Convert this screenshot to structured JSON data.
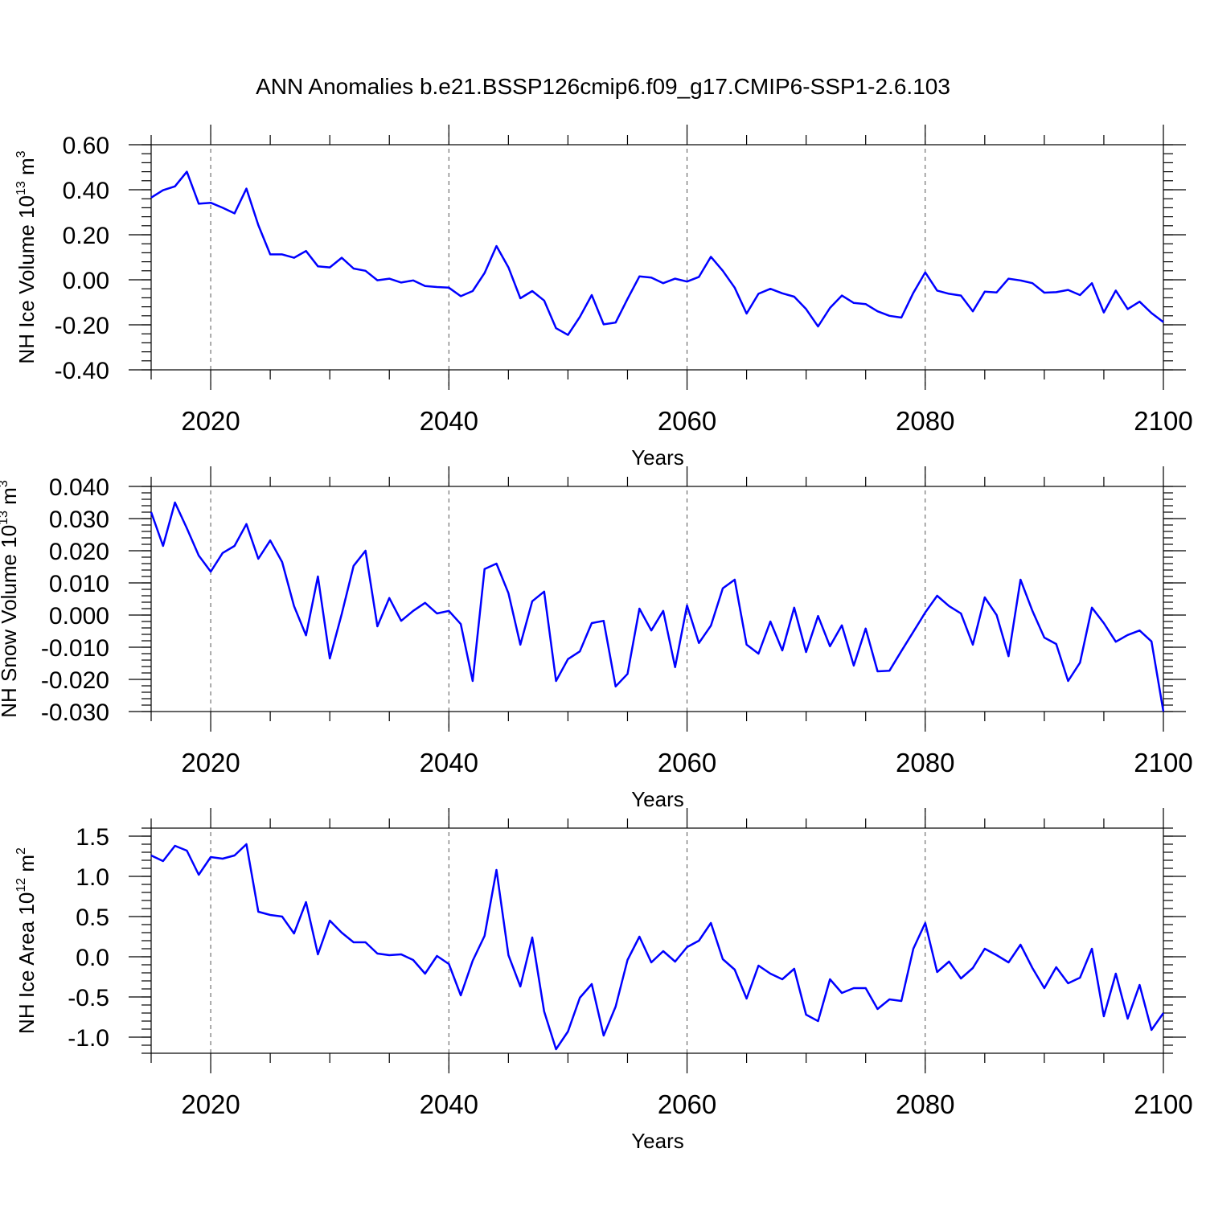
{
  "figure_title": "ANN Anomalies b.e21.BSSP126cmip6.f09_g17.CMIP6-SSP1-2.6.103",
  "line_color": "#0000ff",
  "chart_data": [
    {
      "type": "line",
      "title": "ANN Anomalies b.e21.BSSP126cmip6.f09_g17.CMIP6-SSP1-2.6.103",
      "xlabel": "Years",
      "ylabel_main": "NH Ice Volume 10",
      "ylabel_exp": "13",
      "ylabel_unit": " m",
      "ylabel_unit_exp": "3",
      "xlim": [
        2015,
        2100
      ],
      "ylim": [
        -0.4,
        0.6
      ],
      "x_ticks": [
        2020,
        2040,
        2060,
        2080,
        2100
      ],
      "x_tick_labels": [
        "2020",
        "2040",
        "2060",
        "2080",
        "2100"
      ],
      "y_ticks": [
        0.6,
        0.4,
        0.2,
        0.0,
        -0.2,
        -0.4
      ],
      "y_tick_labels": [
        "0.60",
        "0.40",
        "0.20",
        "0.00",
        "-0.20",
        "-0.40"
      ],
      "grid_x": [
        2020,
        2040,
        2060,
        2080
      ],
      "x": [
        2015,
        2016,
        2017,
        2018,
        2019,
        2020,
        2021,
        2022,
        2023,
        2024,
        2025,
        2026,
        2027,
        2028,
        2029,
        2030,
        2031,
        2032,
        2033,
        2034,
        2035,
        2036,
        2037,
        2038,
        2039,
        2040,
        2041,
        2042,
        2043,
        2044,
        2045,
        2046,
        2047,
        2048,
        2049,
        2050,
        2051,
        2052,
        2053,
        2054,
        2055,
        2056,
        2057,
        2058,
        2059,
        2060,
        2061,
        2062,
        2063,
        2064,
        2065,
        2066,
        2067,
        2068,
        2069,
        2070,
        2071,
        2072,
        2073,
        2074,
        2075,
        2076,
        2077,
        2078,
        2079,
        2080,
        2081,
        2082,
        2083,
        2084,
        2085,
        2086,
        2087,
        2088,
        2089,
        2090,
        2091,
        2092,
        2093,
        2094,
        2095,
        2096,
        2097,
        2098,
        2099,
        2100
      ],
      "values": [
        0.365,
        0.398,
        0.415,
        0.48,
        0.338,
        0.342,
        0.32,
        0.295,
        0.405,
        0.243,
        0.113,
        0.113,
        0.098,
        0.128,
        0.06,
        0.055,
        0.098,
        0.05,
        0.04,
        -0.002,
        0.005,
        -0.012,
        -0.003,
        -0.028,
        -0.032,
        -0.035,
        -0.073,
        -0.05,
        0.03,
        0.15,
        0.055,
        -0.082,
        -0.05,
        -0.092,
        -0.215,
        -0.245,
        -0.165,
        -0.068,
        -0.198,
        -0.19,
        -0.085,
        0.015,
        0.01,
        -0.015,
        0.005,
        -0.008,
        0.013,
        0.102,
        0.04,
        -0.035,
        -0.15,
        -0.062,
        -0.04,
        -0.06,
        -0.075,
        -0.13,
        -0.207,
        -0.125,
        -0.07,
        -0.103,
        -0.108,
        -0.14,
        -0.16,
        -0.168,
        -0.058,
        0.033,
        -0.048,
        -0.062,
        -0.07,
        -0.14,
        -0.053,
        -0.056,
        0.005,
        -0.003,
        -0.015,
        -0.057,
        -0.055,
        -0.045,
        -0.068,
        -0.015,
        -0.145,
        -0.048,
        -0.13,
        -0.097,
        -0.148,
        -0.188
      ]
    },
    {
      "type": "line",
      "xlabel": "Years",
      "ylabel_main": "NH Snow Volume 10",
      "ylabel_exp": "13",
      "ylabel_unit": " m",
      "ylabel_unit_exp": "3",
      "xlim": [
        2015,
        2100
      ],
      "ylim": [
        -0.03,
        0.04
      ],
      "x_ticks": [
        2020,
        2040,
        2060,
        2080,
        2100
      ],
      "x_tick_labels": [
        "2020",
        "2040",
        "2060",
        "2080",
        "2100"
      ],
      "y_ticks": [
        0.04,
        0.03,
        0.02,
        0.01,
        0.0,
        -0.01,
        -0.02,
        -0.03
      ],
      "y_tick_labels": [
        "0.040",
        "0.030",
        "0.020",
        "0.010",
        "0.000",
        "-0.010",
        "-0.020",
        "-0.030"
      ],
      "grid_x": [
        2020,
        2040,
        2060,
        2080
      ],
      "x": [
        2015,
        2016,
        2017,
        2018,
        2019,
        2020,
        2021,
        2022,
        2023,
        2024,
        2025,
        2026,
        2027,
        2028,
        2029,
        2030,
        2031,
        2032,
        2033,
        2034,
        2035,
        2036,
        2037,
        2038,
        2039,
        2040,
        2041,
        2042,
        2043,
        2044,
        2045,
        2046,
        2047,
        2048,
        2049,
        2050,
        2051,
        2052,
        2053,
        2054,
        2055,
        2056,
        2057,
        2058,
        2059,
        2060,
        2061,
        2062,
        2063,
        2064,
        2065,
        2066,
        2067,
        2068,
        2069,
        2070,
        2071,
        2072,
        2073,
        2074,
        2075,
        2076,
        2077,
        2078,
        2079,
        2080,
        2081,
        2082,
        2083,
        2084,
        2085,
        2086,
        2087,
        2088,
        2089,
        2090,
        2091,
        2092,
        2093,
        2094,
        2095,
        2096,
        2097,
        2098,
        2099,
        2100
      ],
      "values": [
        0.032,
        0.0215,
        0.035,
        0.027,
        0.0185,
        0.0135,
        0.0193,
        0.0215,
        0.0283,
        0.0175,
        0.0232,
        0.0165,
        0.0028,
        -0.0063,
        0.012,
        -0.0135,
        0.0003,
        0.0153,
        0.02,
        -0.0035,
        0.0053,
        -0.0018,
        0.0013,
        0.0038,
        0.0005,
        0.0013,
        -0.0028,
        -0.0205,
        0.0143,
        0.016,
        0.0068,
        -0.0092,
        0.0043,
        0.0073,
        -0.0205,
        -0.0137,
        -0.0113,
        -0.0025,
        -0.0018,
        -0.0222,
        -0.0183,
        0.002,
        -0.0048,
        0.0013,
        -0.0162,
        0.003,
        -0.0087,
        -0.0033,
        0.0083,
        0.011,
        -0.0092,
        -0.012,
        -0.002,
        -0.011,
        0.0023,
        -0.0115,
        -0.0003,
        -0.0097,
        -0.0032,
        -0.0157,
        -0.0042,
        -0.0175,
        -0.0173,
        -0.0112,
        -0.0052,
        0.0008,
        0.006,
        0.0028,
        0.0005,
        -0.0092,
        0.0055,
        0.0,
        -0.0128,
        0.011,
        0.0013,
        -0.007,
        -0.009,
        -0.0205,
        -0.0148,
        0.0023,
        -0.0025,
        -0.0083,
        -0.0062,
        -0.0048,
        -0.0082,
        -0.03
      ]
    },
    {
      "type": "line",
      "xlabel": "Years",
      "ylabel_main": "NH Ice Area 10",
      "ylabel_exp": "12",
      "ylabel_unit": " m",
      "ylabel_unit_exp": "2",
      "xlim": [
        2015,
        2100
      ],
      "ylim": [
        -1.2,
        1.6
      ],
      "x_ticks": [
        2020,
        2040,
        2060,
        2080,
        2100
      ],
      "x_tick_labels": [
        "2020",
        "2040",
        "2060",
        "2080",
        "2100"
      ],
      "y_ticks": [
        1.5,
        1.0,
        0.5,
        0.0,
        -0.5,
        -1.0
      ],
      "y_tick_labels": [
        "1.5",
        "1.0",
        "0.5",
        "0.0",
        "-0.5",
        "-1.0"
      ],
      "grid_x": [
        2020,
        2040,
        2060,
        2080
      ],
      "x": [
        2015,
        2016,
        2017,
        2018,
        2019,
        2020,
        2021,
        2022,
        2023,
        2024,
        2025,
        2026,
        2027,
        2028,
        2029,
        2030,
        2031,
        2032,
        2033,
        2034,
        2035,
        2036,
        2037,
        2038,
        2039,
        2040,
        2041,
        2042,
        2043,
        2044,
        2045,
        2046,
        2047,
        2048,
        2049,
        2050,
        2051,
        2052,
        2053,
        2054,
        2055,
        2056,
        2057,
        2058,
        2059,
        2060,
        2061,
        2062,
        2063,
        2064,
        2065,
        2066,
        2067,
        2068,
        2069,
        2070,
        2071,
        2072,
        2073,
        2074,
        2075,
        2076,
        2077,
        2078,
        2079,
        2080,
        2081,
        2082,
        2083,
        2084,
        2085,
        2086,
        2087,
        2088,
        2089,
        2090,
        2091,
        2092,
        2093,
        2094,
        2095,
        2096,
        2097,
        2098,
        2099,
        2100
      ],
      "values": [
        1.26,
        1.19,
        1.38,
        1.32,
        1.02,
        1.24,
        1.22,
        1.26,
        1.4,
        0.56,
        0.52,
        0.5,
        0.29,
        0.68,
        0.03,
        0.45,
        0.3,
        0.18,
        0.18,
        0.04,
        0.02,
        0.03,
        -0.04,
        -0.21,
        0.01,
        -0.09,
        -0.48,
        -0.05,
        0.26,
        1.08,
        0.02,
        -0.37,
        0.24,
        -0.68,
        -1.15,
        -0.93,
        -0.51,
        -0.34,
        -0.98,
        -0.62,
        -0.04,
        0.25,
        -0.07,
        0.07,
        -0.06,
        0.12,
        0.2,
        0.42,
        -0.03,
        -0.16,
        -0.52,
        -0.11,
        -0.21,
        -0.28,
        -0.15,
        -0.72,
        -0.8,
        -0.28,
        -0.45,
        -0.39,
        -0.39,
        -0.65,
        -0.53,
        -0.55,
        0.1,
        0.42,
        -0.19,
        -0.06,
        -0.27,
        -0.14,
        0.1,
        0.02,
        -0.07,
        0.15,
        -0.14,
        -0.39,
        -0.13,
        -0.33,
        -0.26,
        0.1,
        -0.74,
        -0.21,
        -0.77,
        -0.35,
        -0.91,
        -0.7
      ]
    }
  ]
}
